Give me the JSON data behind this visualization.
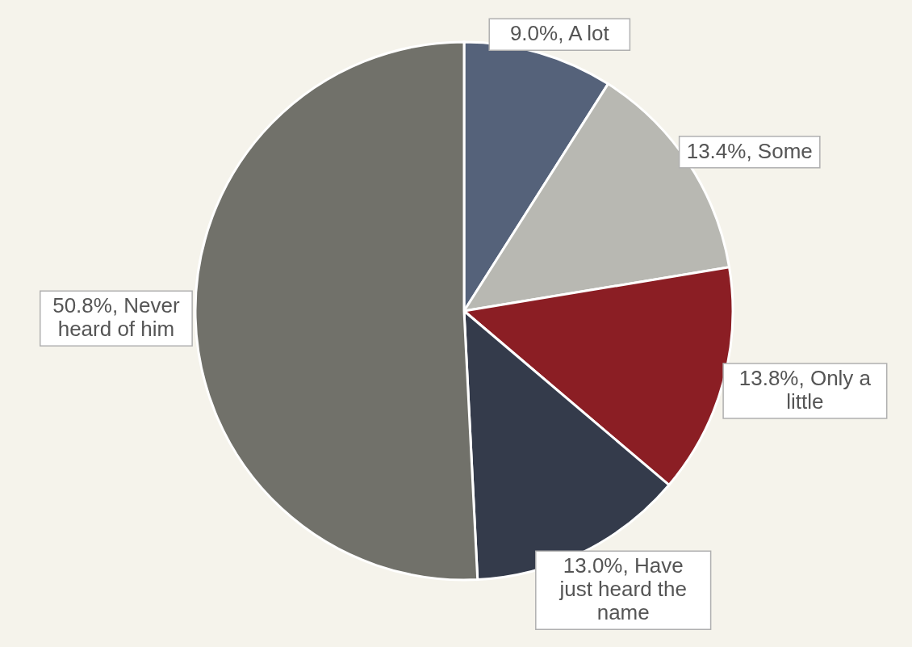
{
  "chart_data": {
    "type": "pie",
    "categories": [
      "A lot",
      "Some",
      "Only a little",
      "Have just heard the name",
      "Never heard of him"
    ],
    "values": [
      9.0,
      13.4,
      13.8,
      13.0,
      50.8
    ],
    "value_labels": [
      "9.0%",
      "13.4%",
      "13.8%",
      "13.0%",
      "50.8%"
    ],
    "colors": [
      "#55627a",
      "#b8b8b2",
      "#8b1e24",
      "#343b4b",
      "#71716a"
    ]
  }
}
